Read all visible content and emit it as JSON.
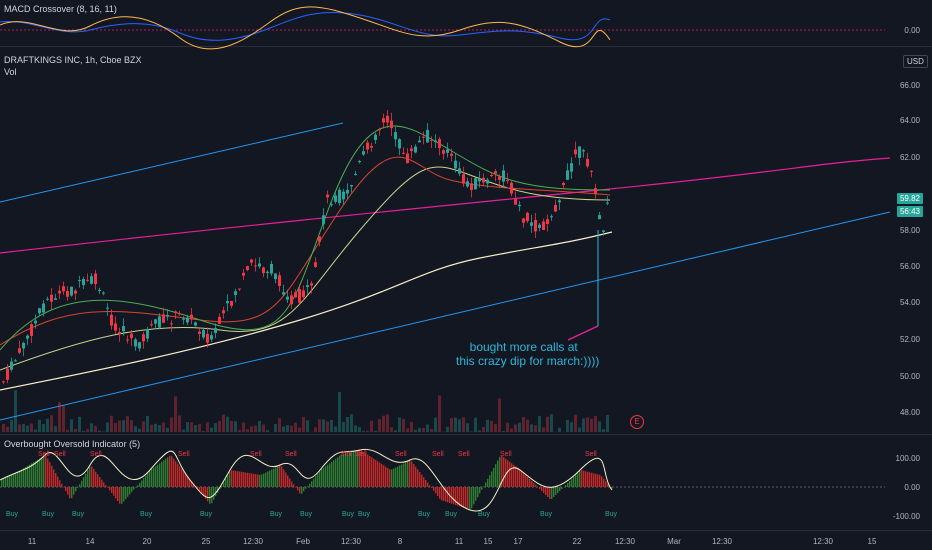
{
  "macd": {
    "title": "MACD Crossover (8, 16, 11)",
    "axis_value": "0.00"
  },
  "main": {
    "title": "DRAFTKINGS INC, 1h, Cboe BZX",
    "vol_label": "Vol",
    "currency": "USD",
    "price_ticks": [
      "66.00",
      "64.00",
      "62.00",
      "58.00",
      "56.00",
      "54.00",
      "52.00",
      "50.00",
      "48.00"
    ],
    "last_price": "59.82",
    "countdown": "56:43",
    "annotation_line1": "bought more calls at",
    "annotation_line2": "this crazy dip for march:))))",
    "earnings_badge": "E"
  },
  "oscillator": {
    "title": "Overbought Oversold Indicator (5)",
    "ticks": [
      "100.00",
      "0.00",
      "-100.00"
    ],
    "sell_label": "Sell",
    "buy_label": "Buy"
  },
  "time_axis": {
    "labels": [
      "11",
      "14",
      "20",
      "25",
      "12:30",
      "Feb",
      "12:30",
      "8",
      "11",
      "15",
      "17",
      "22",
      "12:30",
      "Mar",
      "12:30",
      "12:30",
      "15"
    ]
  },
  "colors": {
    "background": "#131722",
    "up": "#26a69a",
    "down": "#f23645",
    "macd_line": "#2962ff",
    "signal_line": "#ffb74d",
    "trend_blue": "#2196f3",
    "trend_magenta": "#e91e99",
    "ma_yellow": "#f5f0c8"
  },
  "chart_data": {
    "type": "line",
    "price_scale": [
      48,
      66
    ]
  }
}
